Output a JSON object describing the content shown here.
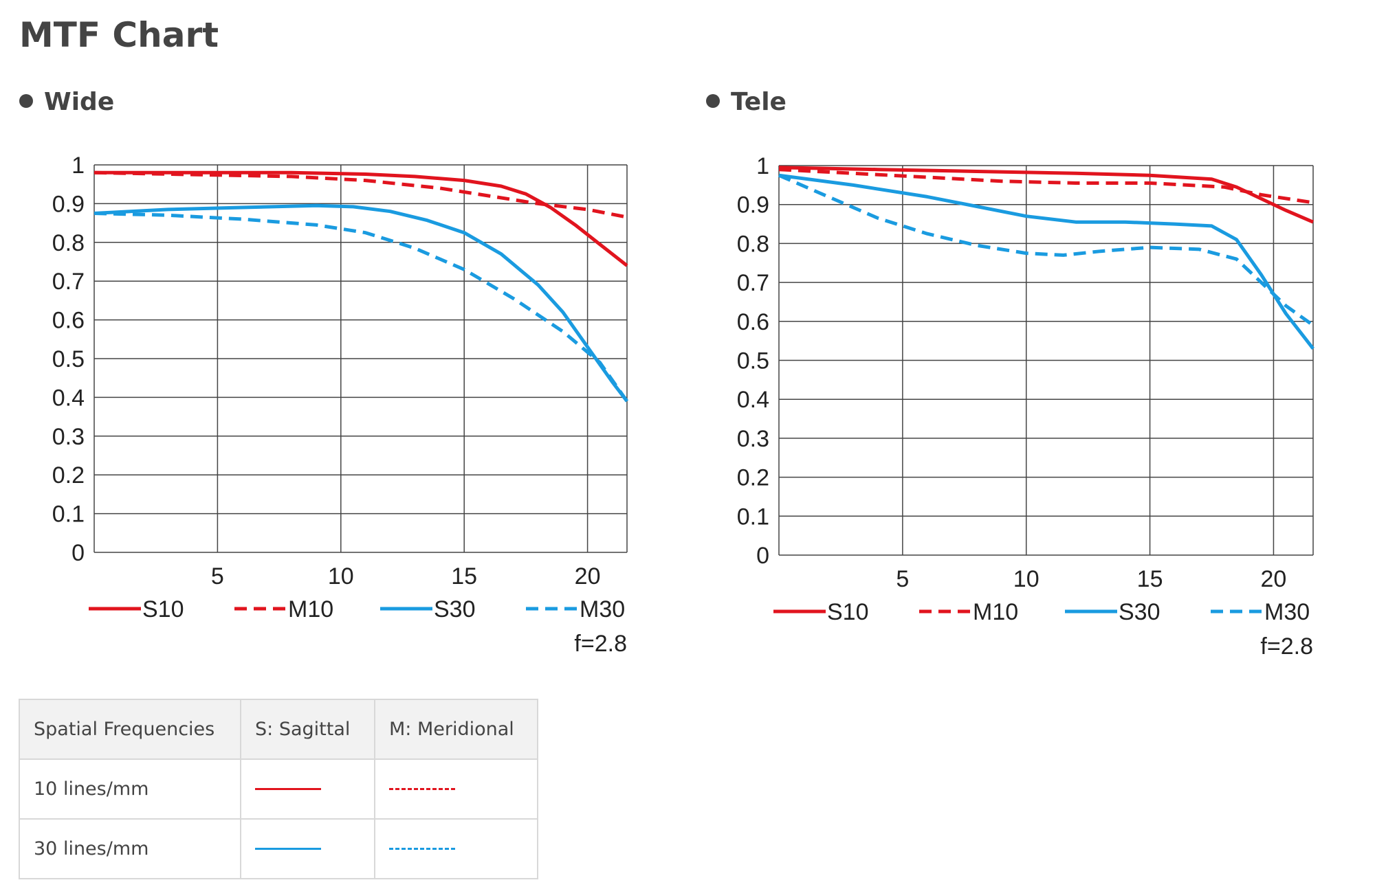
{
  "title": "MTF Chart",
  "colors": {
    "red": "#e1141e",
    "blue": "#1a9be0",
    "grid": "#444444"
  },
  "chart_data": [
    {
      "type": "line",
      "title": "Wide",
      "x_range": [
        0,
        21.6
      ],
      "ylim": [
        0,
        1
      ],
      "x_ticks": [
        "5",
        "10",
        "15",
        "20"
      ],
      "y_ticks": [
        "0",
        "0.1",
        "0.2",
        "0.3",
        "0.4",
        "0.5",
        "0.6",
        "0.7",
        "0.8",
        "0.9",
        "1"
      ],
      "grid": true,
      "note": "f=2.8",
      "series": [
        {
          "name": "S10",
          "color": "#e1141e",
          "dash": false,
          "points": [
            [
              0,
              0.98
            ],
            [
              4,
              0.98
            ],
            [
              8,
              0.98
            ],
            [
              11,
              0.976
            ],
            [
              13,
              0.97
            ],
            [
              15,
              0.96
            ],
            [
              16.5,
              0.945
            ],
            [
              17.5,
              0.925
            ],
            [
              18.5,
              0.89
            ],
            [
              19.5,
              0.845
            ],
            [
              20.5,
              0.795
            ],
            [
              21.6,
              0.74
            ]
          ]
        },
        {
          "name": "M10",
          "color": "#e1141e",
          "dash": true,
          "points": [
            [
              0,
              0.98
            ],
            [
              4,
              0.975
            ],
            [
              8,
              0.97
            ],
            [
              11,
              0.96
            ],
            [
              14,
              0.94
            ],
            [
              16,
              0.92
            ],
            [
              18,
              0.9
            ],
            [
              20,
              0.885
            ],
            [
              21.6,
              0.865
            ]
          ]
        },
        {
          "name": "S30",
          "color": "#1a9be0",
          "dash": false,
          "points": [
            [
              0,
              0.875
            ],
            [
              3,
              0.885
            ],
            [
              6,
              0.89
            ],
            [
              9,
              0.895
            ],
            [
              10.5,
              0.892
            ],
            [
              12,
              0.88
            ],
            [
              13.5,
              0.857
            ],
            [
              15,
              0.825
            ],
            [
              16.5,
              0.77
            ],
            [
              18,
              0.69
            ],
            [
              19,
              0.62
            ],
            [
              20,
              0.53
            ],
            [
              21,
              0.44
            ],
            [
              21.6,
              0.39
            ]
          ]
        },
        {
          "name": "M30",
          "color": "#1a9be0",
          "dash": true,
          "points": [
            [
              0,
              0.875
            ],
            [
              3,
              0.87
            ],
            [
              6,
              0.86
            ],
            [
              9,
              0.845
            ],
            [
              11,
              0.825
            ],
            [
              13,
              0.785
            ],
            [
              15,
              0.73
            ],
            [
              17,
              0.655
            ],
            [
              19,
              0.57
            ],
            [
              20.5,
              0.49
            ],
            [
              21.6,
              0.39
            ]
          ]
        }
      ]
    },
    {
      "type": "line",
      "title": "Tele",
      "x_range": [
        0,
        21.6
      ],
      "ylim": [
        0,
        1
      ],
      "x_ticks": [
        "5",
        "10",
        "15",
        "20"
      ],
      "y_ticks": [
        "0",
        "0.1",
        "0.2",
        "0.3",
        "0.4",
        "0.5",
        "0.6",
        "0.7",
        "0.8",
        "0.9",
        "1"
      ],
      "grid": true,
      "note": "f=2.8",
      "series": [
        {
          "name": "S10",
          "color": "#e1141e",
          "dash": false,
          "points": [
            [
              0,
              0.995
            ],
            [
              4,
              0.99
            ],
            [
              8,
              0.985
            ],
            [
              12,
              0.98
            ],
            [
              15,
              0.975
            ],
            [
              17.5,
              0.965
            ],
            [
              18.5,
              0.945
            ],
            [
              19.5,
              0.915
            ],
            [
              20.5,
              0.885
            ],
            [
              21.6,
              0.855
            ]
          ]
        },
        {
          "name": "M10",
          "color": "#e1141e",
          "dash": true,
          "points": [
            [
              0,
              0.99
            ],
            [
              3,
              0.98
            ],
            [
              6,
              0.97
            ],
            [
              9,
              0.96
            ],
            [
              12,
              0.955
            ],
            [
              15,
              0.955
            ],
            [
              18,
              0.945
            ],
            [
              19.5,
              0.925
            ],
            [
              21.6,
              0.905
            ]
          ]
        },
        {
          "name": "S30",
          "color": "#1a9be0",
          "dash": false,
          "points": [
            [
              0,
              0.975
            ],
            [
              3,
              0.95
            ],
            [
              6,
              0.92
            ],
            [
              8,
              0.895
            ],
            [
              10,
              0.87
            ],
            [
              12,
              0.855
            ],
            [
              14,
              0.855
            ],
            [
              16,
              0.85
            ],
            [
              17.5,
              0.845
            ],
            [
              18.5,
              0.81
            ],
            [
              19.5,
              0.72
            ],
            [
              20.5,
              0.62
            ],
            [
              21.6,
              0.53
            ]
          ]
        },
        {
          "name": "M30",
          "color": "#1a9be0",
          "dash": true,
          "points": [
            [
              0,
              0.975
            ],
            [
              2,
              0.92
            ],
            [
              4,
              0.865
            ],
            [
              6,
              0.825
            ],
            [
              8,
              0.795
            ],
            [
              10,
              0.775
            ],
            [
              11.5,
              0.77
            ],
            [
              13,
              0.78
            ],
            [
              15,
              0.79
            ],
            [
              17,
              0.785
            ],
            [
              18.5,
              0.76
            ],
            [
              19.5,
              0.7
            ],
            [
              20.5,
              0.64
            ],
            [
              21.6,
              0.59
            ]
          ]
        }
      ]
    }
  ],
  "legend_table": {
    "headers": [
      "Spatial Frequencies",
      "S: Sagittal",
      "M: Meridional"
    ],
    "rows": [
      {
        "label": "10 lines/mm",
        "color": "#e1141e"
      },
      {
        "label": "30 lines/mm",
        "color": "#1a9be0"
      }
    ]
  }
}
